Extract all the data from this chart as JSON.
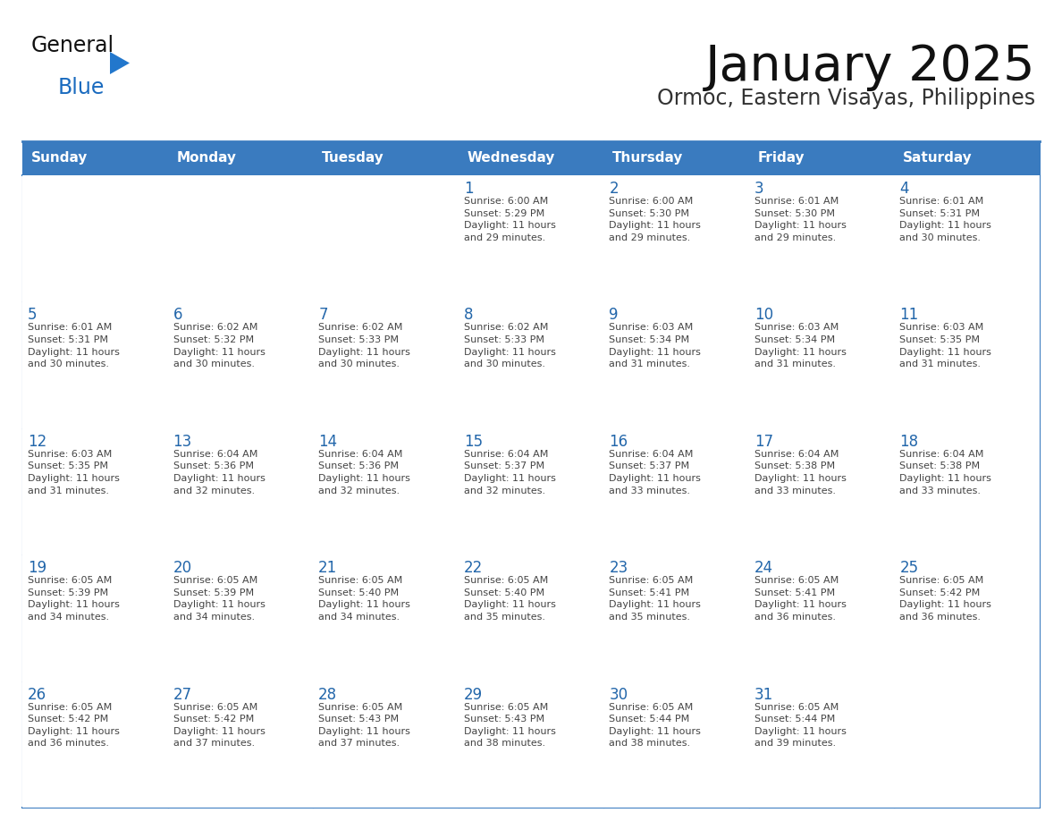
{
  "title": "January 2025",
  "subtitle": "Ormoc, Eastern Visayas, Philippines",
  "days_of_week": [
    "Sunday",
    "Monday",
    "Tuesday",
    "Wednesday",
    "Thursday",
    "Friday",
    "Saturday"
  ],
  "header_bg": "#3a7bbf",
  "header_text": "#ffffff",
  "cell_bg_white": "#ffffff",
  "cell_bg_gray": "#f2f2f2",
  "border_color": "#3a7bbf",
  "day_number_color": "#2266aa",
  "cell_text_color": "#444444",
  "title_color": "#111111",
  "subtitle_color": "#333333",
  "logo_general_color": "#111111",
  "logo_blue_color": "#1a6bbf",
  "logo_triangle_color": "#2277cc",
  "calendar": [
    [
      {
        "day": 0,
        "text": ""
      },
      {
        "day": 0,
        "text": ""
      },
      {
        "day": 0,
        "text": ""
      },
      {
        "day": 1,
        "text": "Sunrise: 6:00 AM\nSunset: 5:29 PM\nDaylight: 11 hours\nand 29 minutes."
      },
      {
        "day": 2,
        "text": "Sunrise: 6:00 AM\nSunset: 5:30 PM\nDaylight: 11 hours\nand 29 minutes."
      },
      {
        "day": 3,
        "text": "Sunrise: 6:01 AM\nSunset: 5:30 PM\nDaylight: 11 hours\nand 29 minutes."
      },
      {
        "day": 4,
        "text": "Sunrise: 6:01 AM\nSunset: 5:31 PM\nDaylight: 11 hours\nand 30 minutes."
      }
    ],
    [
      {
        "day": 5,
        "text": "Sunrise: 6:01 AM\nSunset: 5:31 PM\nDaylight: 11 hours\nand 30 minutes."
      },
      {
        "day": 6,
        "text": "Sunrise: 6:02 AM\nSunset: 5:32 PM\nDaylight: 11 hours\nand 30 minutes."
      },
      {
        "day": 7,
        "text": "Sunrise: 6:02 AM\nSunset: 5:33 PM\nDaylight: 11 hours\nand 30 minutes."
      },
      {
        "day": 8,
        "text": "Sunrise: 6:02 AM\nSunset: 5:33 PM\nDaylight: 11 hours\nand 30 minutes."
      },
      {
        "day": 9,
        "text": "Sunrise: 6:03 AM\nSunset: 5:34 PM\nDaylight: 11 hours\nand 31 minutes."
      },
      {
        "day": 10,
        "text": "Sunrise: 6:03 AM\nSunset: 5:34 PM\nDaylight: 11 hours\nand 31 minutes."
      },
      {
        "day": 11,
        "text": "Sunrise: 6:03 AM\nSunset: 5:35 PM\nDaylight: 11 hours\nand 31 minutes."
      }
    ],
    [
      {
        "day": 12,
        "text": "Sunrise: 6:03 AM\nSunset: 5:35 PM\nDaylight: 11 hours\nand 31 minutes."
      },
      {
        "day": 13,
        "text": "Sunrise: 6:04 AM\nSunset: 5:36 PM\nDaylight: 11 hours\nand 32 minutes."
      },
      {
        "day": 14,
        "text": "Sunrise: 6:04 AM\nSunset: 5:36 PM\nDaylight: 11 hours\nand 32 minutes."
      },
      {
        "day": 15,
        "text": "Sunrise: 6:04 AM\nSunset: 5:37 PM\nDaylight: 11 hours\nand 32 minutes."
      },
      {
        "day": 16,
        "text": "Sunrise: 6:04 AM\nSunset: 5:37 PM\nDaylight: 11 hours\nand 33 minutes."
      },
      {
        "day": 17,
        "text": "Sunrise: 6:04 AM\nSunset: 5:38 PM\nDaylight: 11 hours\nand 33 minutes."
      },
      {
        "day": 18,
        "text": "Sunrise: 6:04 AM\nSunset: 5:38 PM\nDaylight: 11 hours\nand 33 minutes."
      }
    ],
    [
      {
        "day": 19,
        "text": "Sunrise: 6:05 AM\nSunset: 5:39 PM\nDaylight: 11 hours\nand 34 minutes."
      },
      {
        "day": 20,
        "text": "Sunrise: 6:05 AM\nSunset: 5:39 PM\nDaylight: 11 hours\nand 34 minutes."
      },
      {
        "day": 21,
        "text": "Sunrise: 6:05 AM\nSunset: 5:40 PM\nDaylight: 11 hours\nand 34 minutes."
      },
      {
        "day": 22,
        "text": "Sunrise: 6:05 AM\nSunset: 5:40 PM\nDaylight: 11 hours\nand 35 minutes."
      },
      {
        "day": 23,
        "text": "Sunrise: 6:05 AM\nSunset: 5:41 PM\nDaylight: 11 hours\nand 35 minutes."
      },
      {
        "day": 24,
        "text": "Sunrise: 6:05 AM\nSunset: 5:41 PM\nDaylight: 11 hours\nand 36 minutes."
      },
      {
        "day": 25,
        "text": "Sunrise: 6:05 AM\nSunset: 5:42 PM\nDaylight: 11 hours\nand 36 minutes."
      }
    ],
    [
      {
        "day": 26,
        "text": "Sunrise: 6:05 AM\nSunset: 5:42 PM\nDaylight: 11 hours\nand 36 minutes."
      },
      {
        "day": 27,
        "text": "Sunrise: 6:05 AM\nSunset: 5:42 PM\nDaylight: 11 hours\nand 37 minutes."
      },
      {
        "day": 28,
        "text": "Sunrise: 6:05 AM\nSunset: 5:43 PM\nDaylight: 11 hours\nand 37 minutes."
      },
      {
        "day": 29,
        "text": "Sunrise: 6:05 AM\nSunset: 5:43 PM\nDaylight: 11 hours\nand 38 minutes."
      },
      {
        "day": 30,
        "text": "Sunrise: 6:05 AM\nSunset: 5:44 PM\nDaylight: 11 hours\nand 38 minutes."
      },
      {
        "day": 31,
        "text": "Sunrise: 6:05 AM\nSunset: 5:44 PM\nDaylight: 11 hours\nand 39 minutes."
      },
      {
        "day": 0,
        "text": ""
      }
    ]
  ]
}
